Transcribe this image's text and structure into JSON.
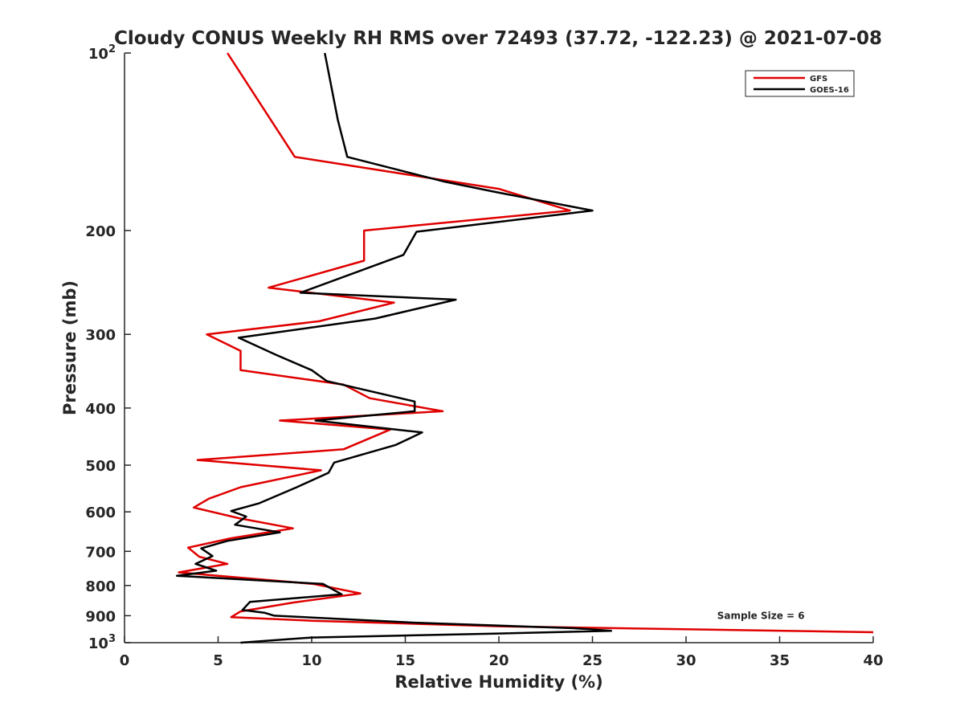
{
  "chart_data": {
    "type": "line",
    "title": "Cloudy CONUS Weekly RH RMS over 72493 (37.72, -122.23) @ 2021-07-08",
    "xlabel": "Relative Humidity (%)",
    "ylabel": "Pressure (mb)",
    "xlim": [
      0,
      40
    ],
    "ylim": [
      100,
      1000
    ],
    "y_scale": "log",
    "y_inverted": true,
    "grid": false,
    "legend_position": "top-right",
    "x_ticks": [
      0,
      5,
      10,
      15,
      20,
      25,
      30,
      35,
      40
    ],
    "x_tick_labels": [
      "0",
      "5",
      "10",
      "15",
      "20",
      "25",
      "30",
      "35",
      "40"
    ],
    "y_ticks": [
      100,
      200,
      300,
      400,
      500,
      600,
      700,
      800,
      900,
      1000
    ],
    "y_tick_labels": [
      "10^2",
      "200",
      "300",
      "400",
      "500",
      "600",
      "700",
      "800",
      "900",
      "10^3"
    ],
    "series": [
      {
        "name": "GFS",
        "color": "#e00000",
        "points": [
          [
            5.5,
            100
          ],
          [
            9.1,
            150
          ],
          [
            20,
            170
          ],
          [
            23.8,
            185
          ],
          [
            12.8,
            200
          ],
          [
            12.8,
            225
          ],
          [
            7.7,
            250
          ],
          [
            14.4,
            265
          ],
          [
            10.4,
            285
          ],
          [
            4.4,
            300
          ],
          [
            6.2,
            320
          ],
          [
            6.2,
            345
          ],
          [
            11.7,
            365
          ],
          [
            13.1,
            385
          ],
          [
            17,
            405
          ],
          [
            8.3,
            420
          ],
          [
            14.2,
            435
          ],
          [
            11.7,
            470
          ],
          [
            3.9,
            490
          ],
          [
            10.5,
            510
          ],
          [
            6.2,
            545
          ],
          [
            4.5,
            570
          ],
          [
            3.7,
            590
          ],
          [
            6.1,
            615
          ],
          [
            9.0,
            640
          ],
          [
            5.7,
            665
          ],
          [
            3.4,
            690
          ],
          [
            4.0,
            715
          ],
          [
            5.5,
            735
          ],
          [
            2.9,
            760
          ],
          [
            10.1,
            795
          ],
          [
            12.6,
            825
          ],
          [
            9.0,
            855
          ],
          [
            6.2,
            885
          ],
          [
            5.7,
            905
          ],
          [
            10,
            918
          ],
          [
            20,
            938
          ],
          [
            40,
            960
          ]
        ]
      },
      {
        "name": "GOES-16",
        "color": "#000000",
        "points": [
          [
            10.7,
            100
          ],
          [
            11.4,
            130
          ],
          [
            11.9,
            150
          ],
          [
            17,
            165
          ],
          [
            19.8,
            172
          ],
          [
            25,
            185
          ],
          [
            15.6,
            201
          ],
          [
            14.9,
            220
          ],
          [
            9.4,
            255
          ],
          [
            17.7,
            262
          ],
          [
            13.4,
            282
          ],
          [
            6.1,
            304
          ],
          [
            8.1,
            325
          ],
          [
            10,
            345
          ],
          [
            10.8,
            360
          ],
          [
            15.5,
            390
          ],
          [
            15.5,
            405
          ],
          [
            10.2,
            420
          ],
          [
            15.9,
            440
          ],
          [
            14.5,
            462
          ],
          [
            11.2,
            495
          ],
          [
            10.9,
            515
          ],
          [
            9.2,
            545
          ],
          [
            7.2,
            580
          ],
          [
            5.7,
            598
          ],
          [
            6.5,
            611
          ],
          [
            5.9,
            631
          ],
          [
            8.3,
            650
          ],
          [
            5.5,
            672
          ],
          [
            4.1,
            692
          ],
          [
            4.7,
            713
          ],
          [
            3.8,
            735
          ],
          [
            4.9,
            755
          ],
          [
            2.8,
            770
          ],
          [
            10.6,
            795
          ],
          [
            11.6,
            828
          ],
          [
            6.7,
            853
          ],
          [
            6.3,
            880
          ],
          [
            7.5,
            890
          ],
          [
            8.0,
            900
          ],
          [
            15.5,
            925
          ],
          [
            24,
            945
          ],
          [
            26,
            955
          ],
          [
            20,
            965
          ],
          [
            10,
            980
          ],
          [
            6.2,
            1000
          ]
        ]
      }
    ],
    "annotations": [
      {
        "text": "Sample Size = 6",
        "x": 34,
        "y": 912
      }
    ]
  }
}
